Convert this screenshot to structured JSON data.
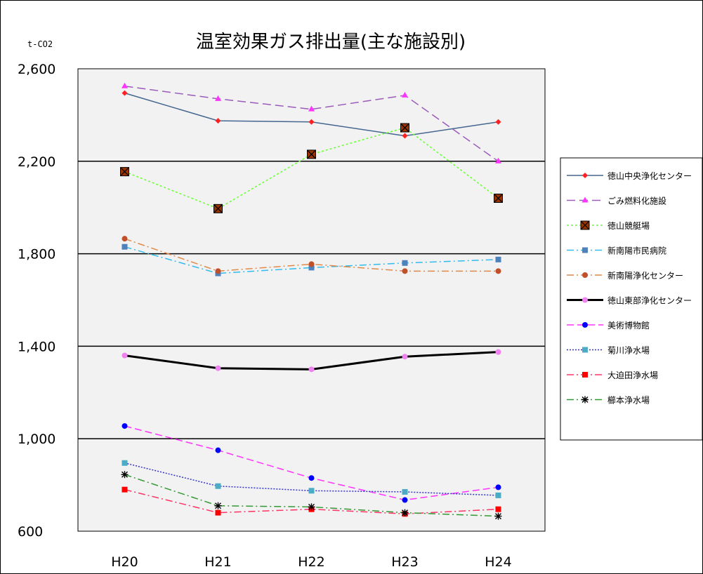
{
  "chart_data": {
    "type": "line",
    "title": "温室効果ガス排出量(主な施設別)",
    "ylabel": "t-CO2",
    "xlabel": "",
    "categories": [
      "H20",
      "H21",
      "H22",
      "H23",
      "H24"
    ],
    "ylim": [
      600,
      2600
    ],
    "yticks": [
      600,
      1000,
      1400,
      1800,
      2200,
      2600
    ],
    "ytick_labels": [
      "600",
      "1,000",
      "1,400",
      "1,800",
      "2,200",
      "2,600"
    ],
    "gridlines": [
      1000,
      1400,
      1800,
      2200
    ],
    "legend_position": "right",
    "plot_background": "#f2f2f2",
    "series": [
      {
        "name": "徳山中央浄化センター",
        "values": [
          2495,
          2375,
          2370,
          2310,
          2370
        ],
        "color": "#44668f",
        "dash": "",
        "width": 1.5,
        "marker": "diamond",
        "marker_color": "#ff2020"
      },
      {
        "name": "ごみ燃料化施設",
        "values": [
          2525,
          2470,
          2425,
          2485,
          2200
        ],
        "color": "#9a5bbb",
        "dash": "12,6",
        "width": 1.5,
        "marker": "triangle",
        "marker_color": "#ff33ff"
      },
      {
        "name": "徳山競艇場",
        "values": [
          2155,
          1995,
          2230,
          2345,
          2040
        ],
        "color": "#66ff33",
        "dash": "3,3",
        "width": 1.5,
        "marker": "xsquare",
        "marker_color": "#993300"
      },
      {
        "name": "新南陽市民病院",
        "values": [
          1830,
          1715,
          1740,
          1760,
          1775
        ],
        "color": "#33bbee",
        "dash": "10,4,2,4",
        "width": 1.5,
        "marker": "square",
        "marker_color": "#4f81bd"
      },
      {
        "name": "新南陽浄化センター",
        "values": [
          1865,
          1725,
          1755,
          1725,
          1725
        ],
        "color": "#e08a4a",
        "dash": "10,4,2,4",
        "width": 1.5,
        "marker": "circle",
        "marker_color": "#c0502a"
      },
      {
        "name": "徳山東部浄化センター",
        "values": [
          1360,
          1305,
          1300,
          1355,
          1375
        ],
        "color": "#000000",
        "dash": "",
        "width": 3,
        "marker": "circle",
        "marker_color": "#ee82ee"
      },
      {
        "name": "美術博物館",
        "values": [
          1055,
          950,
          830,
          735,
          790
        ],
        "color": "#ff33ff",
        "dash": "10,5",
        "width": 1.5,
        "marker": "circle",
        "marker_color": "#0000ff"
      },
      {
        "name": "菊川浄水場",
        "values": [
          895,
          795,
          775,
          770,
          755
        ],
        "color": "#3333cc",
        "dash": "2,2",
        "width": 1.5,
        "marker": "square",
        "marker_color": "#4bacc6"
      },
      {
        "name": "大迫田浄水場",
        "values": [
          780,
          680,
          695,
          675,
          695
        ],
        "color": "#ff3366",
        "dash": "10,4,2,4",
        "width": 1.5,
        "marker": "square",
        "marker_color": "#ff0000"
      },
      {
        "name": "櫛本浄水場",
        "values": [
          845,
          710,
          705,
          680,
          665
        ],
        "color": "#339933",
        "dash": "10,4,2,4",
        "width": 1.5,
        "marker": "star",
        "marker_color": "#000000"
      }
    ]
  }
}
